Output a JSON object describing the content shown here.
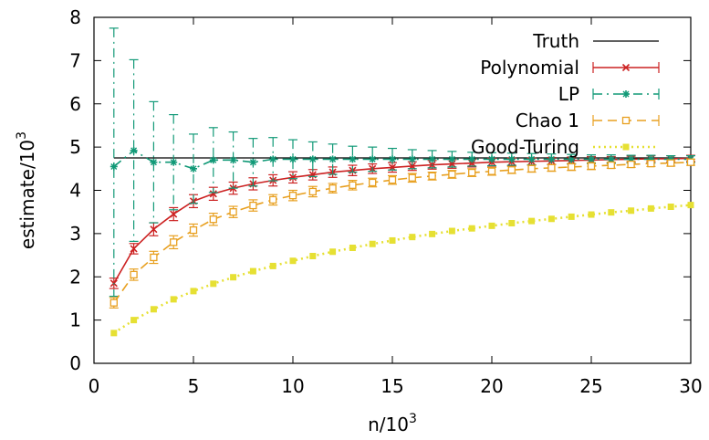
{
  "chart_data": {
    "type": "line",
    "xlabel": "n/10",
    "xlabel_sup": "3",
    "ylabel": "estimate/10",
    "ylabel_sup": "3",
    "xlim": [
      0,
      30
    ],
    "ylim": [
      0,
      8
    ],
    "xticks": [
      0,
      5,
      10,
      15,
      20,
      25,
      30
    ],
    "yticks": [
      0,
      1,
      2,
      3,
      4,
      5,
      6,
      7,
      8
    ],
    "grid": false,
    "legend_position": "top-right",
    "colors": {
      "Truth": "#000000",
      "Polynomial": "#cc2222",
      "LP": "#119977",
      "Chao 1": "#e8a020",
      "Good-Turing": "#e6e033"
    },
    "series": [
      {
        "name": "Truth",
        "style": "solid",
        "x": [
          1,
          30
        ],
        "values": [
          4.75,
          4.75
        ]
      },
      {
        "name": "Polynomial",
        "style": "solid",
        "marker": "x",
        "x": [
          1,
          2,
          3,
          4,
          5,
          6,
          7,
          8,
          9,
          10,
          11,
          12,
          13,
          14,
          15,
          16,
          17,
          18,
          19,
          20,
          21,
          22,
          23,
          24,
          25,
          26,
          27,
          28,
          29,
          30
        ],
        "values": [
          1.85,
          2.65,
          3.1,
          3.45,
          3.75,
          3.92,
          4.05,
          4.15,
          4.23,
          4.3,
          4.36,
          4.42,
          4.46,
          4.5,
          4.53,
          4.56,
          4.59,
          4.61,
          4.63,
          4.65,
          4.66,
          4.67,
          4.68,
          4.69,
          4.7,
          4.71,
          4.72,
          4.73,
          4.73,
          4.74
        ],
        "errors": [
          0.12,
          0.12,
          0.15,
          0.15,
          0.15,
          0.15,
          0.14,
          0.14,
          0.13,
          0.13,
          0.12,
          0.12,
          0.12,
          0.11,
          0.11,
          0.1,
          0.1,
          0.1,
          0.09,
          0.09,
          0.09,
          0.08,
          0.08,
          0.08,
          0.08,
          0.07,
          0.07,
          0.07,
          0.07,
          0.07
        ]
      },
      {
        "name": "LP",
        "style": "dashdot",
        "marker": "star",
        "x": [
          1,
          2,
          3,
          4,
          5,
          6,
          7,
          8,
          9,
          10,
          11,
          12,
          13,
          14,
          15,
          16,
          17,
          18,
          19,
          20,
          21,
          22,
          23,
          24,
          25,
          26,
          27,
          28,
          29,
          30
        ],
        "values": [
          4.55,
          4.92,
          4.65,
          4.65,
          4.5,
          4.7,
          4.7,
          4.65,
          4.72,
          4.72,
          4.72,
          4.72,
          4.72,
          4.72,
          4.72,
          4.72,
          4.72,
          4.72,
          4.72,
          4.72,
          4.72,
          4.72,
          4.72,
          4.72,
          4.72,
          4.72,
          4.72,
          4.72,
          4.72,
          4.72
        ],
        "errors_upper": [
          3.2,
          2.1,
          1.4,
          1.1,
          0.8,
          0.75,
          0.65,
          0.55,
          0.5,
          0.45,
          0.4,
          0.35,
          0.3,
          0.28,
          0.25,
          0.22,
          0.2,
          0.18,
          0.16,
          0.15,
          0.14,
          0.13,
          0.12,
          0.11,
          0.1,
          0.1,
          0.09,
          0.09,
          0.08,
          0.08
        ],
        "errors_lower": [
          3.0,
          2.1,
          1.4,
          1.1,
          0.8,
          0.75,
          0.65,
          0.55,
          0.5,
          0.45,
          0.4,
          0.35,
          0.3,
          0.28,
          0.25,
          0.22,
          0.2,
          0.18,
          0.16,
          0.15,
          0.14,
          0.13,
          0.12,
          0.11,
          0.1,
          0.1,
          0.09,
          0.09,
          0.08,
          0.08
        ]
      },
      {
        "name": "Chao 1",
        "style": "dashed",
        "marker": "square",
        "x": [
          1,
          2,
          3,
          4,
          5,
          6,
          7,
          8,
          9,
          10,
          11,
          12,
          13,
          14,
          15,
          16,
          17,
          18,
          19,
          20,
          21,
          22,
          23,
          24,
          25,
          26,
          27,
          28,
          29,
          30
        ],
        "values": [
          1.4,
          2.05,
          2.45,
          2.8,
          3.08,
          3.33,
          3.5,
          3.65,
          3.78,
          3.88,
          3.97,
          4.05,
          4.12,
          4.18,
          4.24,
          4.29,
          4.33,
          4.37,
          4.41,
          4.44,
          4.47,
          4.5,
          4.52,
          4.54,
          4.56,
          4.58,
          4.6,
          4.62,
          4.63,
          4.65
        ],
        "errors": [
          0.12,
          0.13,
          0.14,
          0.15,
          0.14,
          0.14,
          0.13,
          0.13,
          0.12,
          0.12,
          0.12,
          0.11,
          0.11,
          0.1,
          0.1,
          0.1,
          0.09,
          0.09,
          0.09,
          0.09,
          0.08,
          0.08,
          0.08,
          0.08,
          0.08,
          0.07,
          0.07,
          0.07,
          0.07,
          0.07
        ]
      },
      {
        "name": "Good-Turing",
        "style": "dotted",
        "marker": "square-filled",
        "x": [
          1,
          2,
          3,
          4,
          5,
          6,
          7,
          8,
          9,
          10,
          11,
          12,
          13,
          14,
          15,
          16,
          17,
          18,
          19,
          20,
          21,
          22,
          23,
          24,
          25,
          26,
          27,
          28,
          29,
          30
        ],
        "values": [
          0.7,
          1.0,
          1.25,
          1.48,
          1.67,
          1.84,
          1.99,
          2.13,
          2.25,
          2.37,
          2.48,
          2.58,
          2.67,
          2.76,
          2.84,
          2.92,
          2.99,
          3.06,
          3.12,
          3.18,
          3.24,
          3.29,
          3.34,
          3.39,
          3.44,
          3.49,
          3.53,
          3.58,
          3.62,
          3.66
        ]
      }
    ]
  }
}
